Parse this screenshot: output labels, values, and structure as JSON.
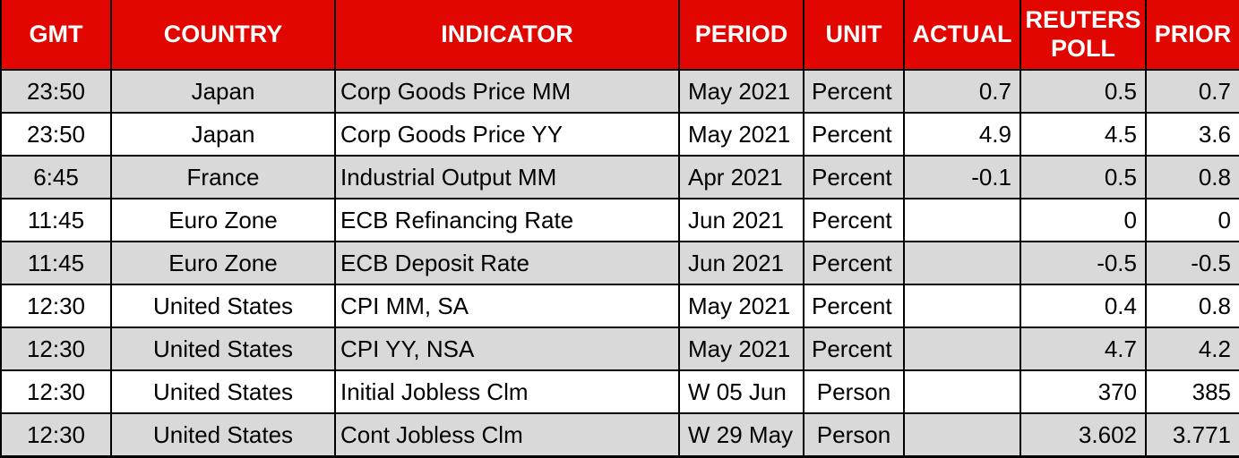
{
  "chart_data": {
    "type": "table",
    "title": "Economic calendar / indicator release schedule",
    "colors": {
      "header_bg": "#e10600",
      "header_text": "#ffffff",
      "row_odd_bg": "#d9d9d9",
      "row_even_bg": "#ffffff",
      "border": "#000000",
      "text": "#000000"
    },
    "columns": [
      {
        "key": "gmt",
        "label": "GMT",
        "align": "center"
      },
      {
        "key": "country",
        "label": "COUNTRY",
        "align": "center"
      },
      {
        "key": "indicator",
        "label": "INDICATOR",
        "align": "left"
      },
      {
        "key": "period",
        "label": "PERIOD",
        "align": "left"
      },
      {
        "key": "unit",
        "label": "UNIT",
        "align": "left"
      },
      {
        "key": "actual",
        "label": "ACTUAL",
        "align": "right"
      },
      {
        "key": "reuters_poll",
        "label": "REUTERS POLL",
        "align": "right"
      },
      {
        "key": "prior",
        "label": "PRIOR",
        "align": "right"
      }
    ],
    "rows": [
      {
        "gmt": "23:50",
        "country": "Japan",
        "indicator": "Corp Goods Price MM",
        "period": "May 2021",
        "unit": "Percent",
        "actual": "0.7",
        "reuters_poll": "0.5",
        "prior": "0.7"
      },
      {
        "gmt": "23:50",
        "country": "Japan",
        "indicator": "Corp Goods Price YY",
        "period": "May 2021",
        "unit": "Percent",
        "actual": "4.9",
        "reuters_poll": "4.5",
        "prior": "3.6"
      },
      {
        "gmt": "6:45",
        "country": "France",
        "indicator": "Industrial Output MM",
        "period": "Apr 2021",
        "unit": "Percent",
        "actual": "-0.1",
        "reuters_poll": "0.5",
        "prior": "0.8"
      },
      {
        "gmt": "11:45",
        "country": "Euro Zone",
        "indicator": "ECB Refinancing Rate",
        "period": "Jun 2021",
        "unit": "Percent",
        "actual": "",
        "reuters_poll": "0",
        "prior": "0"
      },
      {
        "gmt": "11:45",
        "country": "Euro Zone",
        "indicator": "ECB Deposit Rate",
        "period": "Jun 2021",
        "unit": "Percent",
        "actual": "",
        "reuters_poll": "-0.5",
        "prior": "-0.5"
      },
      {
        "gmt": "12:30",
        "country": "United States",
        "indicator": "CPI MM, SA",
        "period": "May 2021",
        "unit": "Percent",
        "actual": "",
        "reuters_poll": "0.4",
        "prior": "0.8"
      },
      {
        "gmt": "12:30",
        "country": "United States",
        "indicator": "CPI YY, NSA",
        "period": "May 2021",
        "unit": "Percent",
        "actual": "",
        "reuters_poll": "4.7",
        "prior": "4.2"
      },
      {
        "gmt": "12:30",
        "country": "United States",
        "indicator": "Initial Jobless Clm",
        "period": "W 05 Jun",
        "unit": "Person",
        "unit_align": "center",
        "actual": "",
        "reuters_poll": "370",
        "prior": "385"
      },
      {
        "gmt": "12:30",
        "country": "United States",
        "indicator": "Cont Jobless Clm",
        "period": "W 29 May",
        "unit": "Person",
        "unit_align": "center",
        "actual": "",
        "reuters_poll": "3.602",
        "prior": "3.771"
      }
    ]
  }
}
